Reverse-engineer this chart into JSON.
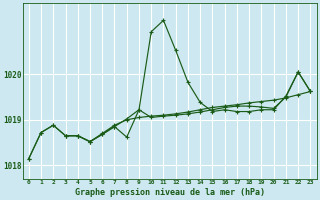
{
  "title": "Graphe pression niveau de la mer (hPa)",
  "background_color": "#cde8f0",
  "grid_color": "#ffffff",
  "line_color": "#1a5c18",
  "xlim": [
    -0.5,
    23.5
  ],
  "ylim": [
    1017.7,
    1021.55
  ],
  "yticks": [
    1018,
    1019,
    1020
  ],
  "xtick_labels": [
    "0",
    "1",
    "2",
    "3",
    "4",
    "5",
    "6",
    "7",
    "8",
    "9",
    "10",
    "11",
    "12",
    "13",
    "14",
    "15",
    "16",
    "17",
    "18",
    "19",
    "20",
    "21",
    "22",
    "23"
  ],
  "xtick_pos": [
    0,
    1,
    2,
    3,
    4,
    5,
    6,
    7,
    8,
    9,
    10,
    11,
    12,
    13,
    14,
    15,
    16,
    17,
    18,
    19,
    20,
    21,
    22,
    23
  ],
  "line1_x": [
    0,
    1,
    2,
    3,
    4,
    5,
    6,
    7,
    8,
    9,
    10,
    11,
    12,
    13,
    14,
    15,
    16,
    17,
    18,
    19,
    20,
    21,
    22,
    23
  ],
  "line1_y": [
    1018.15,
    1018.72,
    1018.88,
    1018.65,
    1018.65,
    1018.52,
    1018.68,
    1018.85,
    1019.02,
    1019.22,
    1020.93,
    1021.18,
    1020.52,
    1019.82,
    1019.38,
    1019.18,
    1019.22,
    1019.18,
    1019.18,
    1019.22,
    1019.22,
    1019.52,
    1020.05,
    1019.62
  ],
  "line2_x": [
    0,
    1,
    2,
    3,
    4,
    5,
    6,
    7,
    8,
    9,
    10,
    11,
    12,
    13,
    14,
    15,
    16,
    17,
    18,
    19,
    20,
    21,
    22,
    23
  ],
  "line2_y": [
    1018.15,
    1018.72,
    1018.88,
    1018.65,
    1018.65,
    1018.52,
    1018.7,
    1018.88,
    1019.0,
    1019.05,
    1019.08,
    1019.1,
    1019.13,
    1019.17,
    1019.22,
    1019.27,
    1019.3,
    1019.33,
    1019.37,
    1019.4,
    1019.43,
    1019.48,
    1019.55,
    1019.62
  ],
  "line3_x": [
    3,
    4,
    5,
    6,
    7,
    8,
    9,
    10,
    11,
    12,
    13,
    14,
    15,
    16,
    17,
    18,
    19,
    20,
    21,
    22,
    23
  ],
  "line3_y": [
    1018.65,
    1018.65,
    1018.52,
    1018.68,
    1018.85,
    1018.62,
    1019.22,
    1019.05,
    1019.08,
    1019.1,
    1019.13,
    1019.17,
    1019.22,
    1019.27,
    1019.3,
    1019.3,
    1019.28,
    1019.25,
    1019.5,
    1020.05,
    1019.62
  ]
}
